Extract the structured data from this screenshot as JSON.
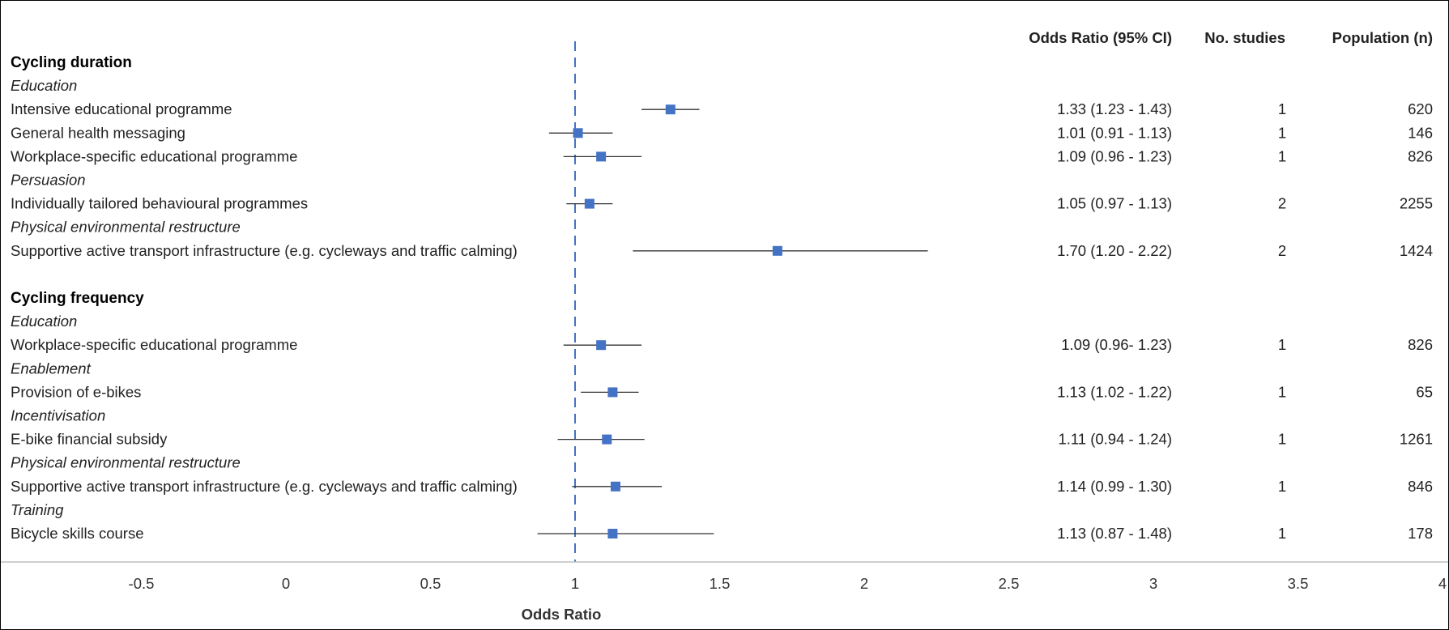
{
  "chart_data": {
    "type": "forest",
    "xlabel": "Odds Ratio",
    "xlim": [
      -1,
      4
    ],
    "xticks": [
      -0.5,
      0,
      0.5,
      1,
      1.5,
      2,
      2.5,
      3,
      3.5,
      4
    ],
    "reference_line": 1,
    "columns": [
      "Odds Ratio (95% CI)",
      "No. studies",
      "Population (n)"
    ],
    "rows": [
      {
        "kind": "group",
        "label": "Cycling duration"
      },
      {
        "kind": "category",
        "label": "Education"
      },
      {
        "kind": "item",
        "label": "Intensive educational programme",
        "or": 1.33,
        "lo": 1.23,
        "hi": 1.43,
        "ci_text": "1.33 (1.23 - 1.43)",
        "studies": "1",
        "n": "620"
      },
      {
        "kind": "item",
        "label": "General health messaging",
        "or": 1.01,
        "lo": 0.91,
        "hi": 1.13,
        "ci_text": "1.01 (0.91 - 1.13)",
        "studies": "1",
        "n": "146"
      },
      {
        "kind": "item",
        "label": "Workplace-specific educational programme",
        "or": 1.09,
        "lo": 0.96,
        "hi": 1.23,
        "ci_text": "1.09 (0.96 - 1.23)",
        "studies": "1",
        "n": "826"
      },
      {
        "kind": "category",
        "label": "Persuasion"
      },
      {
        "kind": "item",
        "label": "Individually tailored behavioural programmes",
        "or": 1.05,
        "lo": 0.97,
        "hi": 1.13,
        "ci_text": "1.05 (0.97 - 1.13)",
        "studies": "2",
        "n": "2255"
      },
      {
        "kind": "category",
        "label": "Physical environmental restructure"
      },
      {
        "kind": "item",
        "label": "Supportive active transport infrastructure (e.g. cycleways and traffic calming)",
        "or": 1.7,
        "lo": 1.2,
        "hi": 2.22,
        "ci_text": "1.70 (1.20 - 2.22)",
        "studies": "2",
        "n": "1424"
      },
      {
        "kind": "spacer"
      },
      {
        "kind": "group",
        "label": "Cycling frequency"
      },
      {
        "kind": "category",
        "label": "Education"
      },
      {
        "kind": "item",
        "label": "Workplace-specific educational programme",
        "or": 1.09,
        "lo": 0.96,
        "hi": 1.23,
        "ci_text": "1.09 (0.96- 1.23)",
        "studies": "1",
        "n": "826"
      },
      {
        "kind": "category",
        "label": "Enablement"
      },
      {
        "kind": "item",
        "label": "Provision of e-bikes",
        "or": 1.13,
        "lo": 1.02,
        "hi": 1.22,
        "ci_text": "1.13 (1.02 - 1.22)",
        "studies": "1",
        "n": "65"
      },
      {
        "kind": "category",
        "label": "Incentivisation"
      },
      {
        "kind": "item",
        "label": "E-bike financial subsidy",
        "or": 1.11,
        "lo": 0.94,
        "hi": 1.24,
        "ci_text": "1.11 (0.94 - 1.24)",
        "studies": "1",
        "n": "1261"
      },
      {
        "kind": "category",
        "label": "Physical environmental restructure"
      },
      {
        "kind": "item",
        "label": "Supportive active transport infrastructure (e.g. cycleways and traffic calming)",
        "or": 1.14,
        "lo": 0.99,
        "hi": 1.3,
        "ci_text": "1.14 (0.99 - 1.30)",
        "studies": "1",
        "n": "846"
      },
      {
        "kind": "category",
        "label": "Training"
      },
      {
        "kind": "item",
        "label": "Bicycle skills course",
        "or": 1.13,
        "lo": 0.87,
        "hi": 1.48,
        "ci_text": "1.13 (0.87 - 1.48)",
        "studies": "1",
        "n": "178"
      }
    ],
    "colors": {
      "marker": "#4472C4",
      "reference_line": "#4472C4",
      "ci_line": "#333333",
      "axis": "#BFBFBF"
    },
    "grid": false
  }
}
